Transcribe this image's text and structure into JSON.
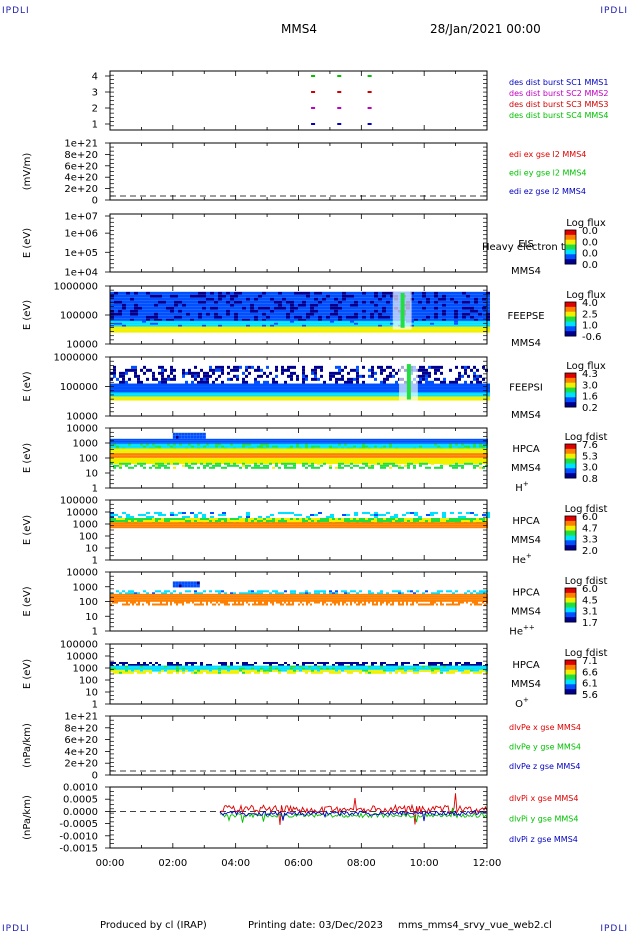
{
  "corner_label": "IPDLI",
  "header": {
    "spacecraft": "MMS4",
    "datetime": "28/Jan/2021 00:00"
  },
  "footer": {
    "produced": "Produced by cl (IRAP)",
    "printing": "Printing date: 03/Dec/2023",
    "script": "mms_mms4_srvy_vue_web2.cl"
  },
  "colors": {
    "mms1": "#0000c0",
    "mms2": "#c000c0",
    "mms3": "#d00000",
    "mms4": "#00c000",
    "x": "#e00000",
    "y": "#00c000",
    "z": "#0000c0"
  },
  "chart_data": {
    "type": "multi-panel time series / spectrogram",
    "x_axis": {
      "start": "00:00",
      "end": "12:00",
      "ticks": [
        "00:00",
        "02:00",
        "04:00",
        "06:00",
        "08:00",
        "10:00",
        "12:00"
      ]
    },
    "panels": [
      {
        "id": "burst",
        "type": "scatter",
        "ylabel": "",
        "ticks": [
          "4",
          "3",
          "2",
          "1"
        ],
        "legend": [
          "des dist burst SC1 MMS1",
          "des dist burst SC2 MMS2",
          "des dist burst SC3 MMS3",
          "des dist burst SC4 MMS4"
        ],
        "series": [
          {
            "name": "des dist burst SC1 MMS1",
            "level": 1,
            "times": [
              "06:24",
              "07:14",
              "08:12"
            ]
          },
          {
            "name": "des dist burst SC2 MMS2",
            "level": 2,
            "times": [
              "06:24",
              "07:14",
              "08:12"
            ]
          },
          {
            "name": "des dist burst SC3 MMS3",
            "level": 3,
            "times": [
              "06:24",
              "07:14",
              "08:12"
            ]
          },
          {
            "name": "des dist burst SC4 MMS4",
            "level": 4,
            "times": [
              "06:24",
              "07:14",
              "08:12"
            ]
          }
        ]
      },
      {
        "id": "edi",
        "type": "line",
        "ylabel": "(mV/m)",
        "ticks": [
          "1e+21",
          "8e+20",
          "6e+20",
          "4e+20",
          "2e+20",
          "0"
        ],
        "legend": [
          "edi ex gse l2 MMS4",
          "edi ey gse l2 MMS4",
          "edi ez gse l2 MMS4"
        ]
      },
      {
        "id": "eis",
        "type": "heatmap",
        "ylabel": "E (eV)",
        "ticks": [
          "1e+07",
          "1e+06",
          "1e+05",
          "1e+04"
        ],
        "name": "EIS",
        "name2": "MMS4",
        "overlay": "Heavy electron tof",
        "cbar_title": "Log flux",
        "cbar_ticks": [
          "0.0",
          "0.0",
          "0.0",
          "0.0"
        ]
      },
      {
        "id": "feepse",
        "type": "heatmap",
        "ylabel": "E (eV)",
        "ticks": [
          "1000000",
          "100000",
          "10000"
        ],
        "name": "FEEPSE",
        "name2": "MMS4",
        "cbar_title": "Log flux",
        "cbar_ticks": [
          "4.0",
          "2.5",
          "1.0",
          "-0.6"
        ]
      },
      {
        "id": "feepsi",
        "type": "heatmap",
        "ylabel": "E (eV)",
        "ticks": [
          "1000000",
          "100000",
          "10000"
        ],
        "name": "FEEPSI",
        "name2": "MMS4",
        "cbar_title": "Log flux",
        "cbar_ticks": [
          "4.3",
          "3.0",
          "1.6",
          "0.2"
        ]
      },
      {
        "id": "hpca_h",
        "type": "heatmap",
        "ylabel": "E (eV)",
        "ticks": [
          "10000",
          "1000",
          "100",
          "10",
          "1"
        ],
        "name": "HPCA",
        "name2": "MMS4",
        "species": "H",
        "charge": "+",
        "cbar_title": "Log fdist",
        "cbar_ticks": [
          "7.6",
          "5.3",
          "3.0",
          "0.8"
        ]
      },
      {
        "id": "hpca_he",
        "type": "heatmap",
        "ylabel": "E (eV)",
        "ticks": [
          "100000",
          "10000",
          "1000",
          "100",
          "10",
          "1"
        ],
        "name": "HPCA",
        "name2": "MMS4",
        "species": "He",
        "charge": "+",
        "cbar_title": "Log fdist",
        "cbar_ticks": [
          "6.0",
          "4.7",
          "3.3",
          "2.0"
        ]
      },
      {
        "id": "hpca_he2",
        "type": "heatmap",
        "ylabel": "E (eV)",
        "ticks": [
          "10000",
          "1000",
          "100",
          "10",
          "1"
        ],
        "name": "HPCA",
        "name2": "MMS4",
        "species": "He",
        "charge": "++",
        "cbar_title": "Log fdist",
        "cbar_ticks": [
          "6.0",
          "4.5",
          "3.1",
          "1.7"
        ]
      },
      {
        "id": "hpca_o",
        "type": "heatmap",
        "ylabel": "E (eV)",
        "ticks": [
          "100000",
          "10000",
          "1000",
          "100",
          "10",
          "1"
        ],
        "name": "HPCA",
        "name2": "MMS4",
        "species": "O",
        "charge": "+",
        "cbar_title": "Log fdist",
        "cbar_ticks": [
          "7.1",
          "6.6",
          "6.1",
          "5.6"
        ]
      },
      {
        "id": "dlvpe",
        "type": "line",
        "ylabel": "(nPa/km)",
        "ticks": [
          "1e+21",
          "8e+20",
          "6e+20",
          "4e+20",
          "2e+20",
          "0"
        ],
        "legend": [
          "dlvPe x gse MMS4",
          "dlvPe y gse MMS4",
          "dlvPe z gse MMS4"
        ]
      },
      {
        "id": "dlvpi",
        "type": "line",
        "ylabel": "(nPa/km)",
        "ticks": [
          "0.0010",
          "0.0005",
          "0.0000",
          "-0.0005",
          "-0.0010",
          "-0.0015"
        ],
        "legend": [
          "dlvPi x gse MMS4",
          "dlvPi y gse MMS4",
          "dlvPi z gse MMS4"
        ]
      }
    ]
  }
}
